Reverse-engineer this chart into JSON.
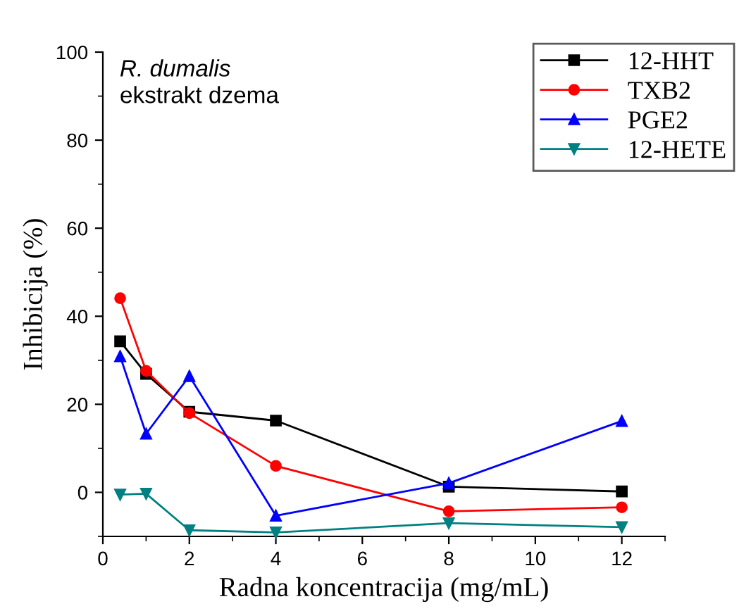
{
  "chart_data": {
    "type": "line",
    "title": "R. dumalis",
    "subtitle": "ekstrakt dzema",
    "xlabel": "Radna koncentracija (mg/mL)",
    "ylabel": "Inhibicija (%)",
    "x": [
      0.4,
      1,
      2,
      4,
      8,
      12
    ],
    "series": [
      {
        "name": "12-HHT",
        "color": "#000000",
        "marker": "square",
        "values": [
          34.3,
          26.9,
          18.3,
          16.3,
          1.3,
          0.2
        ]
      },
      {
        "name": "TXB2",
        "color": "#ff0000",
        "marker": "circle",
        "values": [
          44.1,
          27.6,
          18.0,
          6.0,
          -4.3,
          -3.4
        ]
      },
      {
        "name": "PGE2",
        "color": "#0000ff",
        "marker": "triangle",
        "values": [
          30.9,
          13.3,
          26.4,
          -5.3,
          2.1,
          16.2
        ]
      },
      {
        "name": "12-HETE",
        "color": "#008080",
        "marker": "triangle_down",
        "values": [
          -0.5,
          -0.3,
          -8.6,
          -9.1,
          -7.0,
          -7.9
        ]
      }
    ],
    "xlim": [
      0,
      13
    ],
    "xticks": [
      0,
      2,
      4,
      6,
      8,
      10,
      12
    ],
    "ylim": [
      -10,
      100
    ],
    "yticks": [
      0,
      20,
      40,
      60,
      80,
      100
    ],
    "grid": false,
    "legend": "top right",
    "line_style": "solid"
  }
}
